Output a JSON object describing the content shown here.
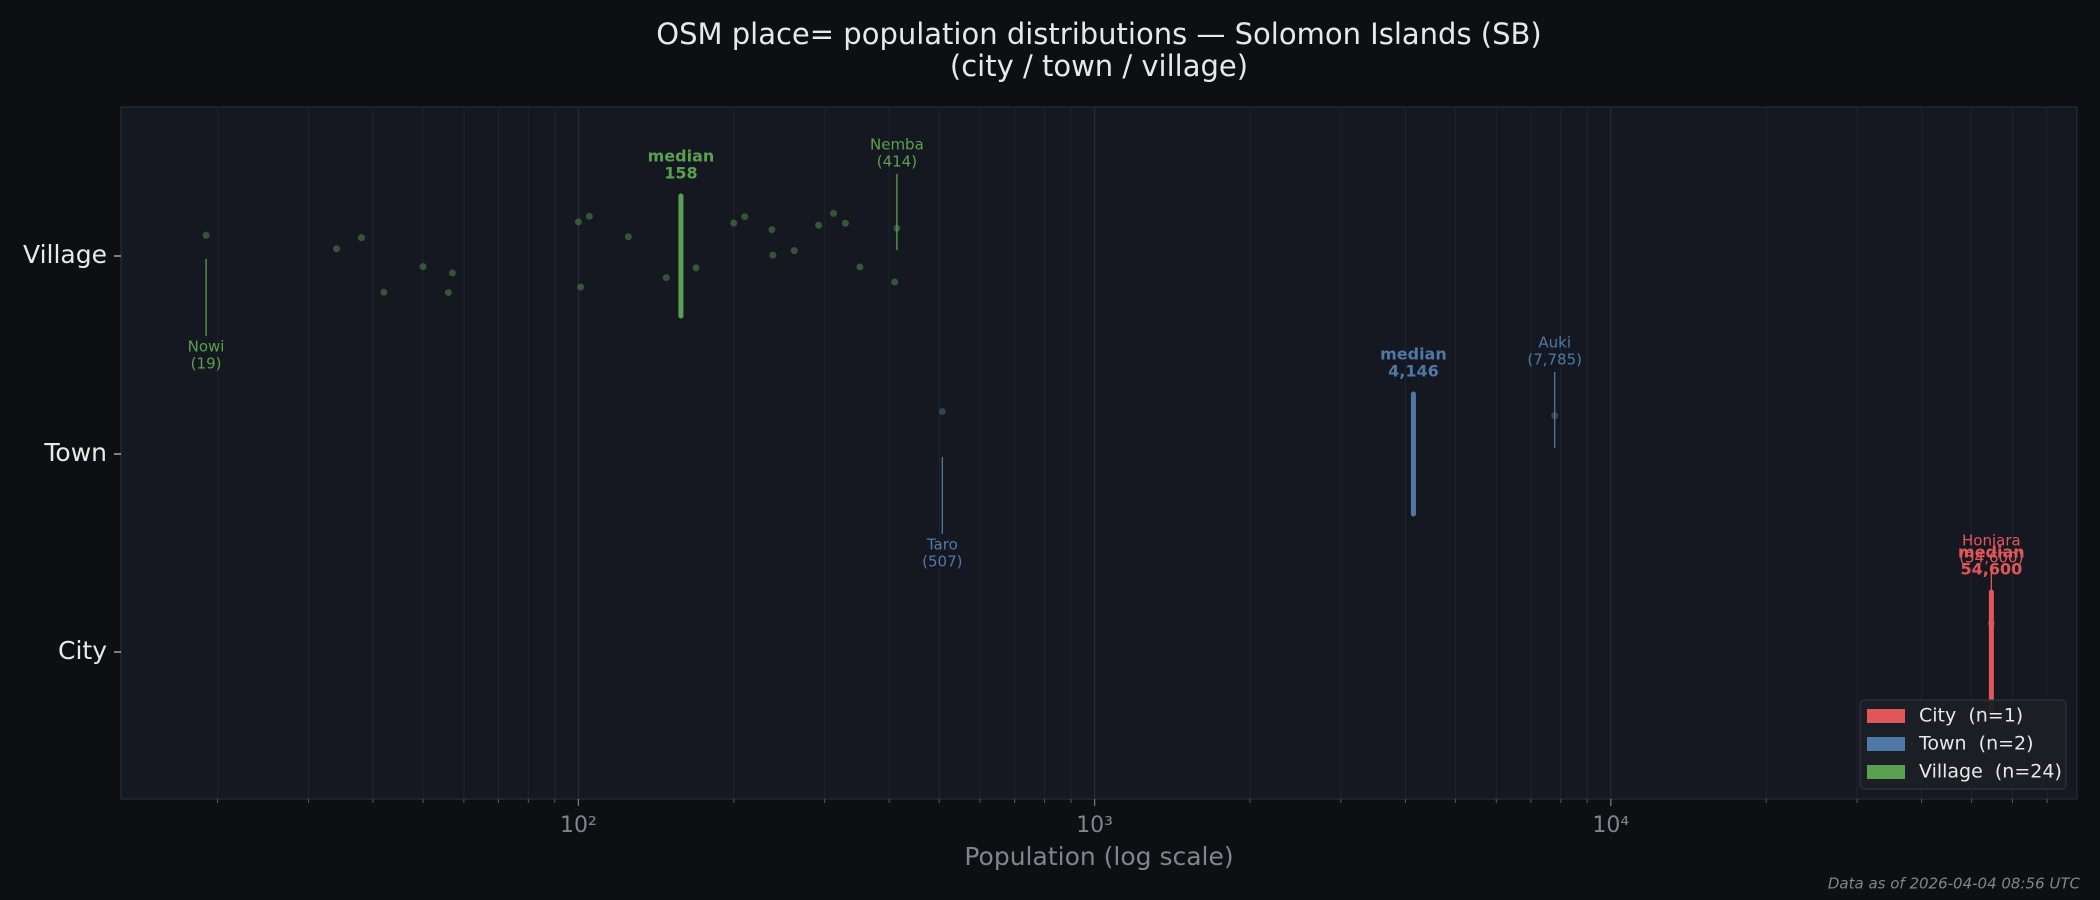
{
  "chart_data": {
    "type": "strip",
    "title": "OSM place= population distributions — Solomon Islands (SB)",
    "subtitle": "(city / town / village)",
    "x_label": "Population (log scale)",
    "x_scale": "log",
    "xlim": [
      13,
      80000
    ],
    "xticks": [
      {
        "value": 100,
        "label": "10²"
      },
      {
        "value": 1000,
        "label": "10³"
      },
      {
        "value": 10000,
        "label": "10⁴"
      }
    ],
    "xticks_minor": [
      20,
      30,
      40,
      50,
      60,
      70,
      80,
      90,
      200,
      300,
      400,
      500,
      600,
      700,
      800,
      900,
      2000,
      3000,
      4000,
      5000,
      6000,
      7000,
      8000,
      9000,
      20000,
      30000,
      40000,
      50000,
      60000,
      70000
    ],
    "categories": [
      "City",
      "Town",
      "Village"
    ],
    "median_text": "median",
    "grid": true,
    "legend": "lower right",
    "series": [
      {
        "name": "City  (n=1)",
        "color": "#e15759",
        "values": [
          54600
        ],
        "median": {
          "value": 54600,
          "label": "54,600"
        },
        "extremes": [
          {
            "name": "Honiara",
            "value": 54600,
            "label": "(54,600)",
            "side": "max"
          }
        ]
      },
      {
        "name": "Town  (n=2)",
        "color": "#4e79a7",
        "values": [
          507,
          7785
        ],
        "median": {
          "value": 4146,
          "label": "4,146"
        },
        "extremes": [
          {
            "name": "Taro",
            "value": 507,
            "label": "(507)",
            "side": "min"
          },
          {
            "name": "Auki",
            "value": 7785,
            "label": "(7,785)",
            "side": "max"
          }
        ]
      },
      {
        "name": "Village  (n=24)",
        "color": "#59a14f",
        "values": [
          19,
          34,
          38,
          42,
          50,
          56,
          57,
          100,
          101,
          105,
          125,
          148,
          169,
          200,
          210,
          237,
          238,
          262,
          292,
          312,
          329,
          351,
          410,
          414
        ],
        "median": {
          "value": 158,
          "label": "158"
        },
        "extremes": [
          {
            "name": "Nowi",
            "value": 19,
            "label": "(19)",
            "side": "min"
          },
          {
            "name": "Nemba",
            "value": 414,
            "label": "(414)",
            "side": "max"
          }
        ]
      }
    ],
    "footnote": "Data as of 2026-04-04 08:56 UTC"
  }
}
